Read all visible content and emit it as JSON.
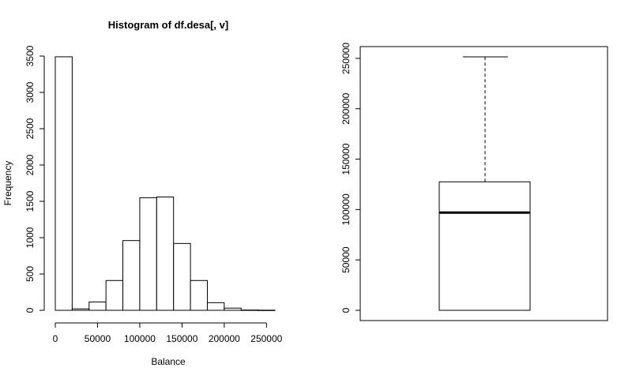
{
  "chart_data": [
    {
      "type": "bar",
      "subtype": "histogram",
      "title": "Histogram of df.desa[, v]",
      "xlabel": "Balance",
      "ylabel": "Frequency",
      "bins": [
        {
          "from": 0,
          "to": 20000,
          "count": 3490
        },
        {
          "from": 20000,
          "to": 40000,
          "count": 20
        },
        {
          "from": 40000,
          "to": 60000,
          "count": 115
        },
        {
          "from": 60000,
          "to": 80000,
          "count": 410
        },
        {
          "from": 80000,
          "to": 100000,
          "count": 960
        },
        {
          "from": 100000,
          "to": 120000,
          "count": 1550
        },
        {
          "from": 120000,
          "to": 140000,
          "count": 1560
        },
        {
          "from": 140000,
          "to": 160000,
          "count": 920
        },
        {
          "from": 160000,
          "to": 180000,
          "count": 410
        },
        {
          "from": 180000,
          "to": 200000,
          "count": 105
        },
        {
          "from": 200000,
          "to": 220000,
          "count": 30
        },
        {
          "from": 220000,
          "to": 240000,
          "count": 4
        },
        {
          "from": 240000,
          "to": 260000,
          "count": 2
        }
      ],
      "xticks": [
        0,
        50000,
        100000,
        150000,
        200000,
        250000
      ],
      "yticks": [
        0,
        500,
        1000,
        1500,
        2000,
        2500,
        3000,
        3500
      ],
      "xlim": [
        0,
        260000
      ],
      "ylim": [
        0,
        3500
      ],
      "grid": false,
      "fill_color": "#ffffff",
      "stroke_color": "#000000"
    },
    {
      "type": "box",
      "min": 0,
      "q1": 0,
      "median": 97000,
      "q3": 127500,
      "max": 251500,
      "yticks": [
        0,
        50000,
        100000,
        150000,
        200000,
        250000
      ],
      "ylim": [
        0,
        251500
      ],
      "grid": false,
      "stroke_color": "#000000"
    }
  ]
}
